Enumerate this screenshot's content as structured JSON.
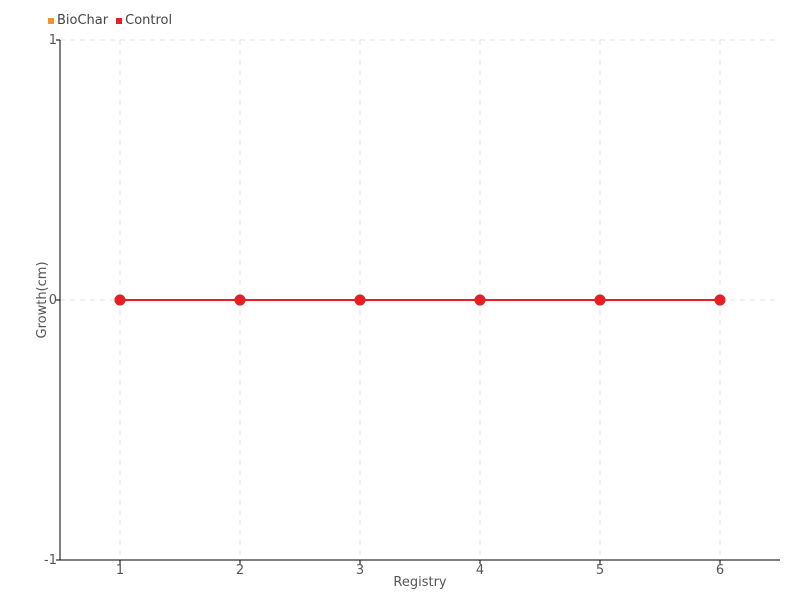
{
  "chart_data": {
    "type": "line",
    "title": "",
    "xlabel": "Registry",
    "ylabel": "Growth(cm)",
    "x": [
      1,
      2,
      3,
      4,
      5,
      6
    ],
    "xlim": [
      0.5,
      6.5
    ],
    "ylim": [
      -1,
      1
    ],
    "xticks": [
      "1",
      "2",
      "3",
      "4",
      "5",
      "6"
    ],
    "yticks": [
      "1",
      "0",
      "-1"
    ],
    "grid": true,
    "legend_position": "top-left",
    "series": [
      {
        "name": "BioChar",
        "color": "#f7941d",
        "values": [
          0,
          0,
          0,
          0,
          0,
          0
        ]
      },
      {
        "name": "Control",
        "color": "#ed1c24",
        "values": [
          0,
          0,
          0,
          0,
          0,
          0
        ]
      }
    ]
  }
}
